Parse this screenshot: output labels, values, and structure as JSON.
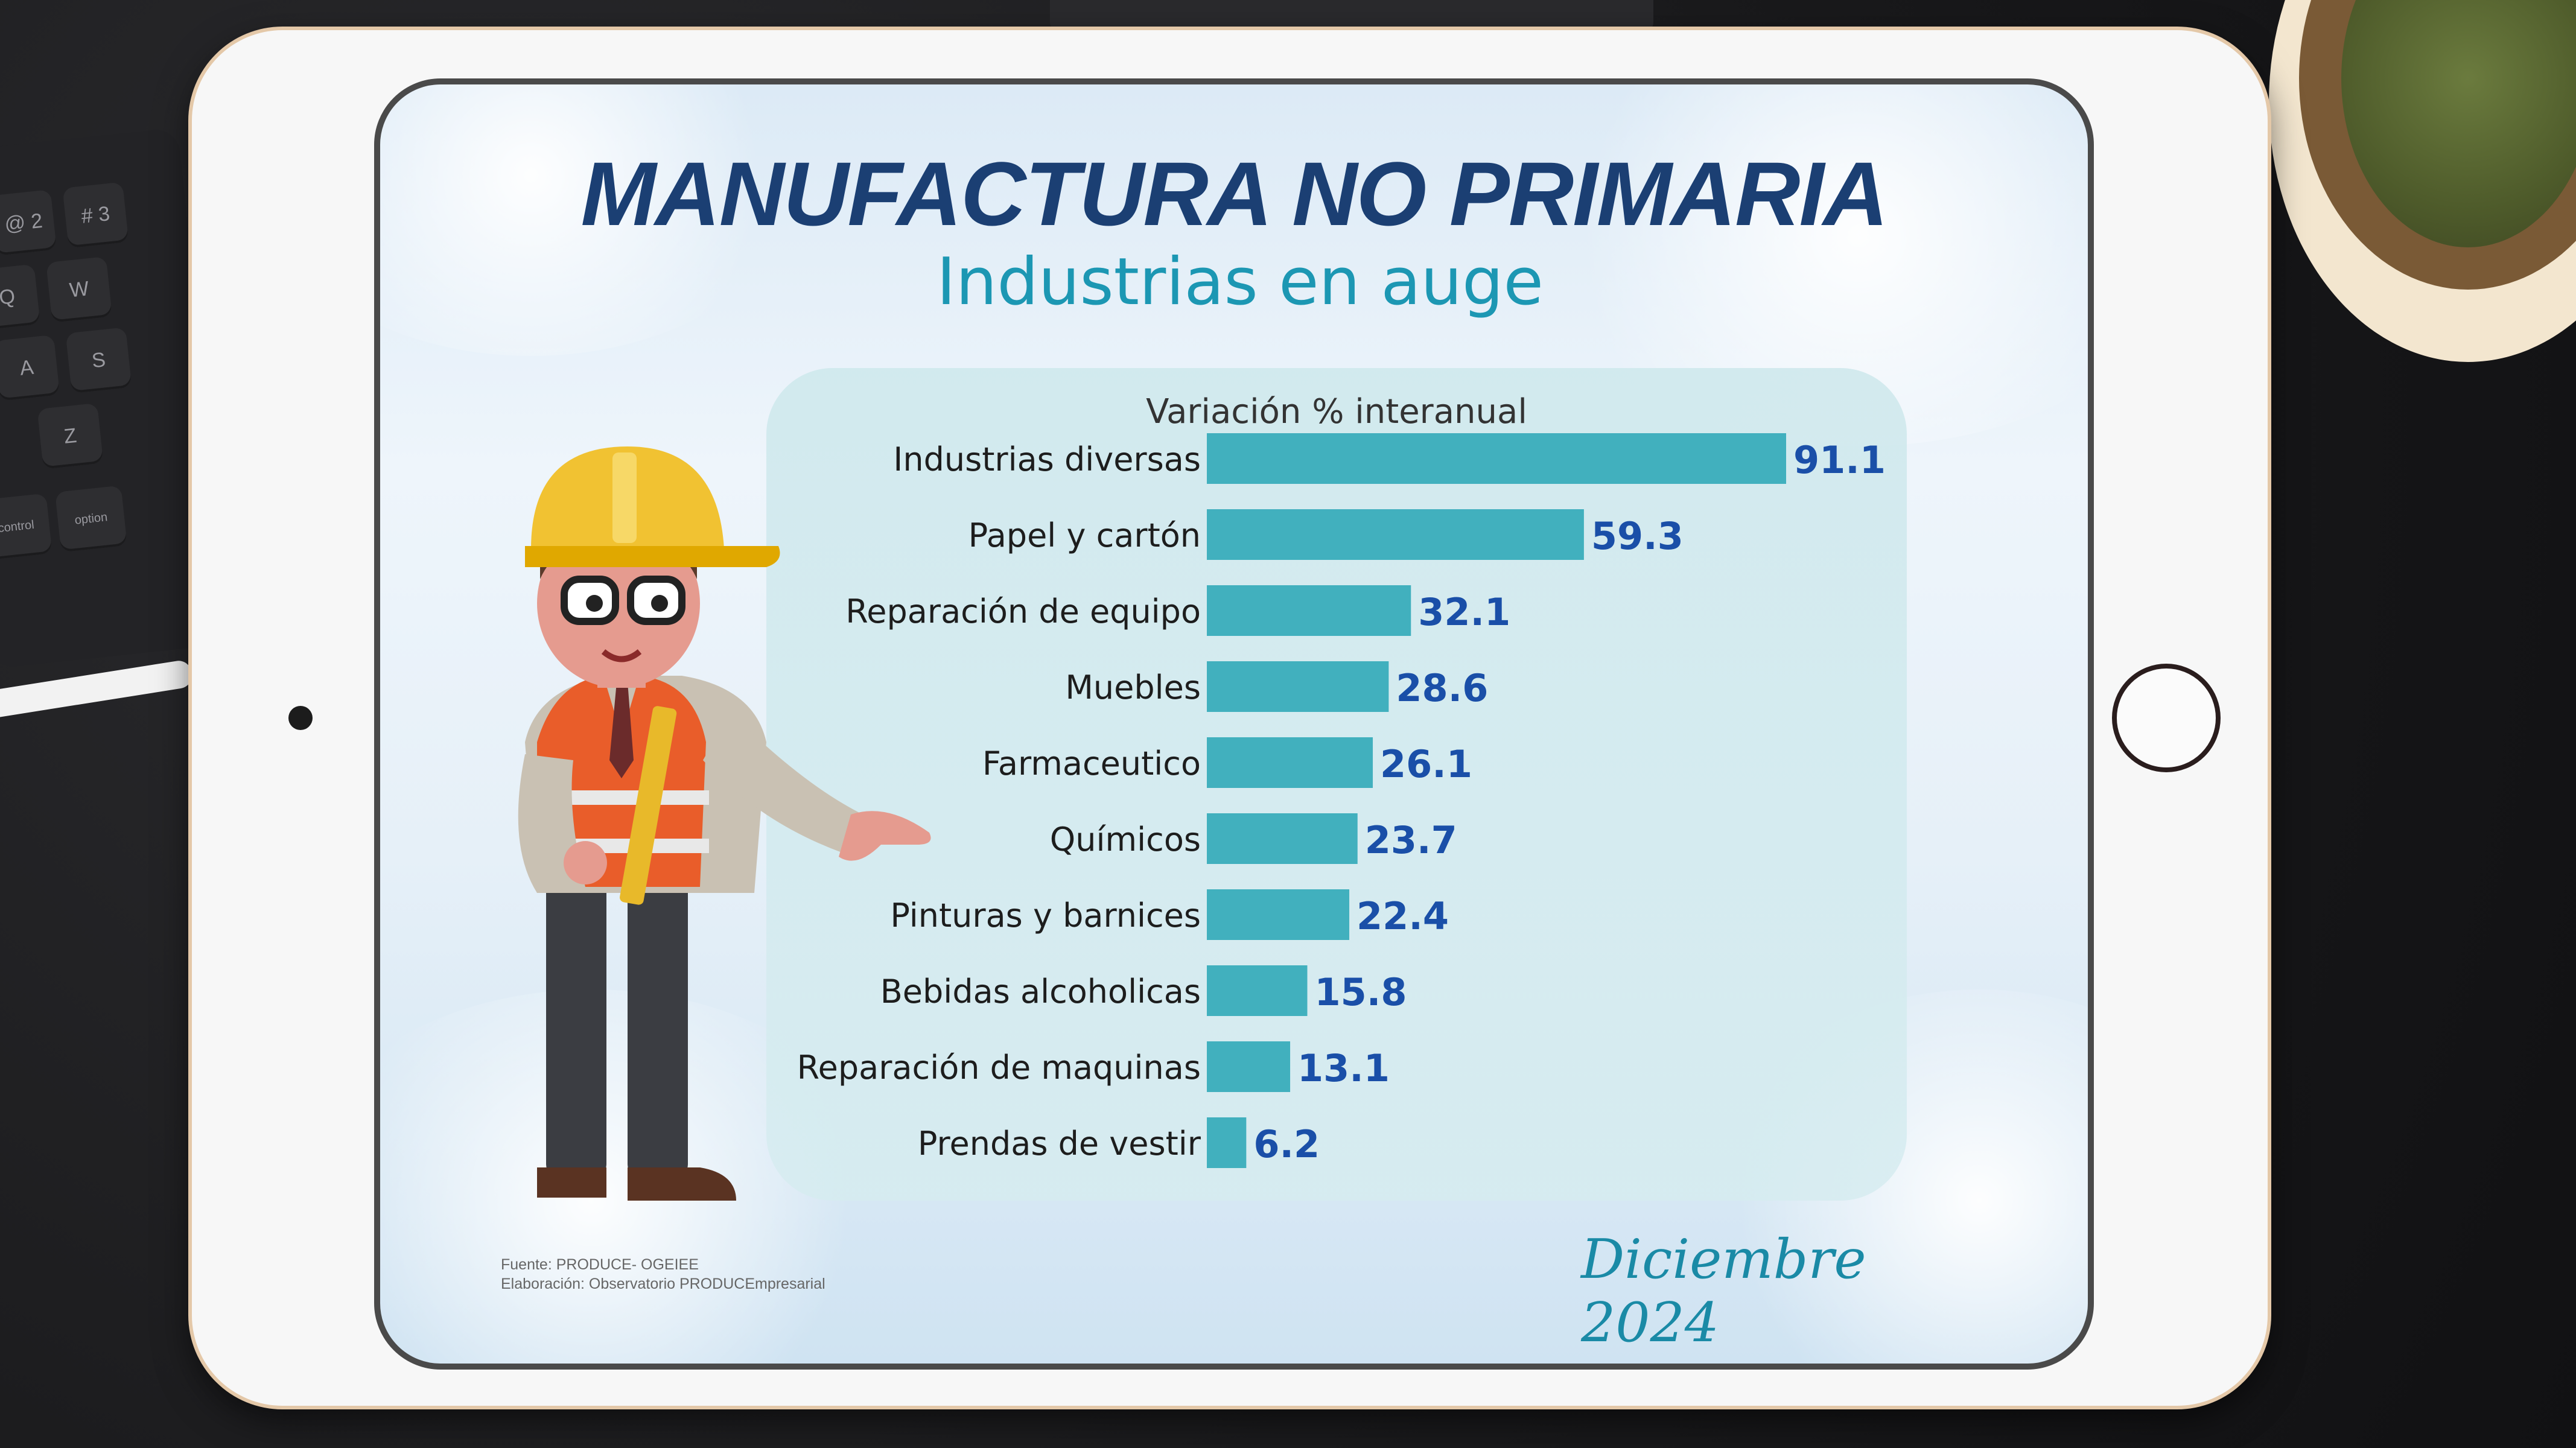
{
  "keyboard_keys": [
    "@ 2",
    "# 3",
    "Q",
    "W",
    "A",
    "S",
    "Z",
    "control",
    "option"
  ],
  "title": "MANUFACTURA NO PRIMARIA",
  "subtitle": "Industrias en auge",
  "source": {
    "line1": "Fuente: PRODUCE- OGEIEE",
    "line2": "Elaboración: Observatorio PRODUCEmpresarial"
  },
  "date": "Diciembre 2024",
  "colors": {
    "bar": "#41b0be",
    "value": "#1a4fa8",
    "title": "#1b3f73",
    "subtitle": "#1c97b3"
  },
  "chart_data": {
    "type": "bar",
    "orientation": "horizontal",
    "title": "Variación % interanual",
    "categories": [
      "Industrias diversas",
      "Papel y cartón",
      "Reparación de equipo",
      "Muebles",
      "Farmaceutico",
      "Químicos",
      "Pinturas y barnices",
      "Bebidas alcoholicas",
      "Reparación de maquinas",
      "Prendas de vestir"
    ],
    "values": [
      91.1,
      59.3,
      32.1,
      28.6,
      26.1,
      23.7,
      22.4,
      15.8,
      13.1,
      6.2
    ],
    "value_labels": [
      "91.1",
      "59.3",
      "32.1",
      "28.6",
      "26.1",
      "23.7",
      "22.4",
      "15.8",
      "13.1",
      "6.2"
    ],
    "xlim": [
      0,
      91.1
    ],
    "grid": false
  }
}
